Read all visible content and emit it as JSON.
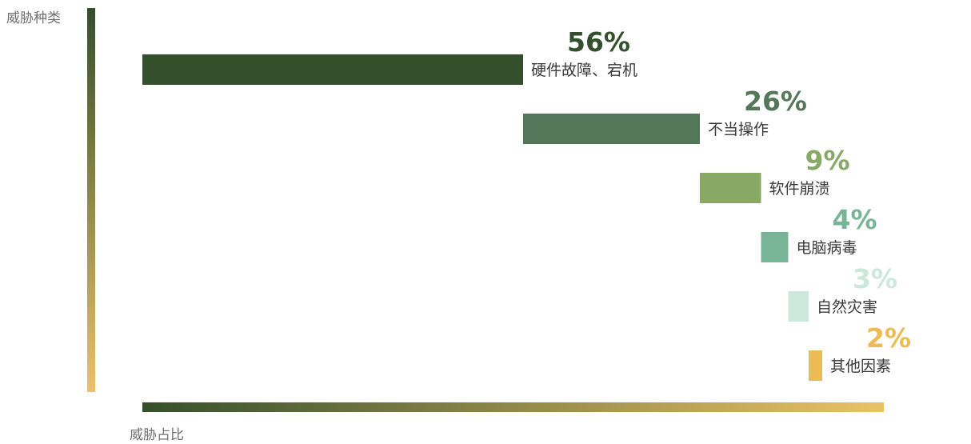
{
  "chart_data": {
    "type": "bar",
    "subtype": "waterfall",
    "ylabel": "威胁种类",
    "xlabel": "威胁占比",
    "grid": false,
    "legend": "none",
    "xlim": [
      0,
      100
    ],
    "categories": [
      "硬件故障、宕机",
      "不当操作",
      "软件崩溃",
      "电脑病毒",
      "自然灾害",
      "其他因素"
    ],
    "values": [
      56,
      26,
      9,
      4,
      3,
      2
    ],
    "value_labels": [
      "56%",
      "26%",
      "9%",
      "4%",
      "3%",
      "2%"
    ],
    "colors": [
      "#344f2c",
      "#537758",
      "#87a965",
      "#78b596",
      "#cce8dc",
      "#ecbb56"
    ],
    "axis_gradient": [
      "#344f2c",
      "#ebc266"
    ]
  }
}
